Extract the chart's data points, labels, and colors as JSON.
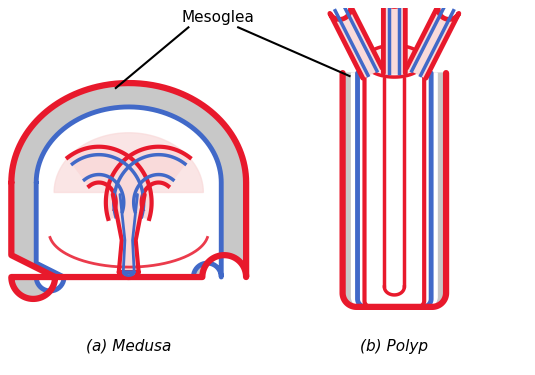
{
  "label_medusa": "(a) Medusa",
  "label_polyp": "(b) Polyp",
  "label_mesoglea": "Mesoglea",
  "color_red": "#e8192c",
  "color_blue": "#4169c8",
  "color_gray": "#c8c8c8",
  "color_pink_light": "#f9dada",
  "color_pink": "#f5c0c0",
  "color_white": "#ffffff",
  "color_black": "#000000",
  "background": "#ffffff"
}
